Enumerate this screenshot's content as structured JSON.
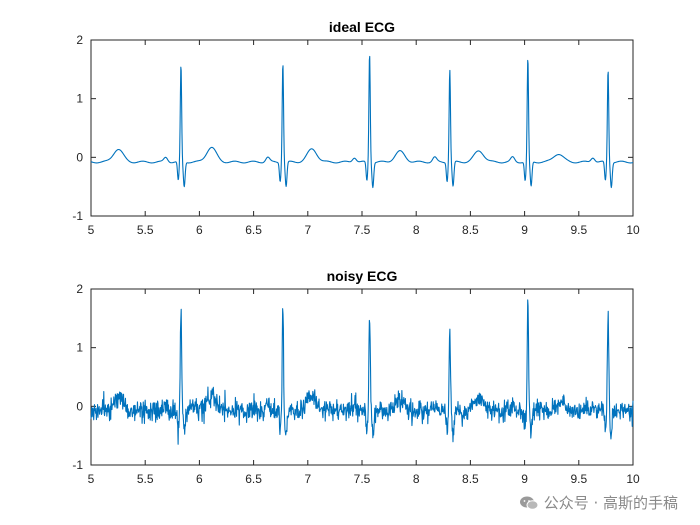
{
  "chart_data": [
    {
      "type": "line",
      "title": "ideal ECG",
      "xlabel": "",
      "ylabel": "",
      "xlim": [
        5,
        10
      ],
      "ylim": [
        -1,
        2
      ],
      "xticks": [
        5,
        5.5,
        6,
        6.5,
        7,
        7.5,
        8,
        8.5,
        9,
        9.5,
        10
      ],
      "yticks": [
        -1,
        0,
        1,
        2
      ],
      "grid": false,
      "series_color": "#0072bd",
      "beats": [
        {
          "r_time": 5.83,
          "r_peak": 1.57,
          "t_time": 5.25,
          "t_height": 0.22
        },
        {
          "r_time": 6.77,
          "r_peak": 1.62,
          "t_time": 6.11,
          "t_height": 0.25
        },
        {
          "r_time": 7.57,
          "r_peak": 1.78,
          "t_time": 7.04,
          "t_height": 0.22
        },
        {
          "r_time": 8.31,
          "r_peak": 1.5,
          "t_time": 7.85,
          "t_height": 0.18
        },
        {
          "r_time": 9.03,
          "r_peak": 1.69,
          "t_time": 8.58,
          "t_height": 0.19
        },
        {
          "r_time": 9.77,
          "r_peak": 1.5,
          "t_time": 9.31,
          "t_height": 0.14
        }
      ],
      "baseline": -0.08,
      "noise_std": 0
    },
    {
      "type": "line",
      "title": "noisy ECG",
      "xlabel": "",
      "ylabel": "",
      "xlim": [
        5,
        10
      ],
      "ylim": [
        -1,
        2
      ],
      "xticks": [
        5,
        5.5,
        6,
        6.5,
        7,
        7.5,
        8,
        8.5,
        9,
        9.5,
        10
      ],
      "yticks": [
        -1,
        0,
        1,
        2
      ],
      "grid": false,
      "series_color": "#0072bd",
      "beats": [
        {
          "r_time": 5.83,
          "r_peak": 1.67,
          "t_time": 5.25,
          "t_height": 0.22
        },
        {
          "r_time": 6.77,
          "r_peak": 1.7,
          "t_time": 6.11,
          "t_height": 0.25
        },
        {
          "r_time": 7.57,
          "r_peak": 1.62,
          "t_time": 7.04,
          "t_height": 0.22
        },
        {
          "r_time": 8.31,
          "r_peak": 1.3,
          "t_time": 7.85,
          "t_height": 0.18
        },
        {
          "r_time": 9.03,
          "r_peak": 1.8,
          "t_time": 8.58,
          "t_height": 0.19
        },
        {
          "r_time": 9.77,
          "r_peak": 1.6,
          "t_time": 9.31,
          "t_height": 0.14
        }
      ],
      "baseline": -0.08,
      "noise_std": 0.09
    }
  ],
  "watermark": {
    "text": "公众号 · 高斯的手稿",
    "icon": "wechat-icon",
    "color": "#8a8a8a"
  }
}
